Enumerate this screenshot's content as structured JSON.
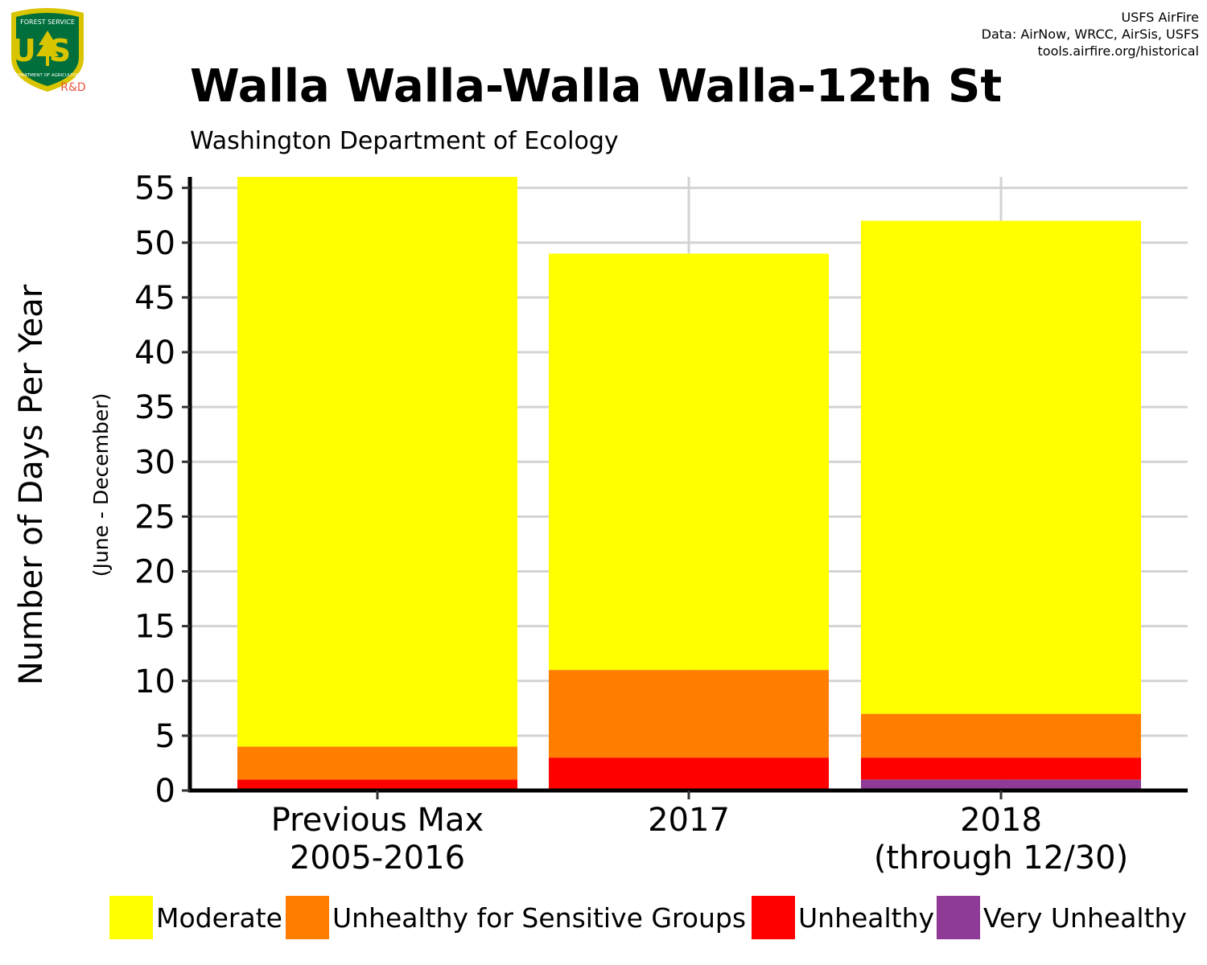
{
  "header": {
    "logo": {
      "top_text": "FOREST SERVICE",
      "letters": "US",
      "bottom_text": "DEPARTMENT OF AGRICULTURE",
      "tag": "R&D",
      "colors": {
        "shield": "#006f3c",
        "rim": "#d9c400",
        "tag": "#e8553c"
      }
    },
    "credits": [
      "USFS AirFire",
      "Data: AirNow, WRCC, AirSis, USFS",
      "tools.airfire.org/historical"
    ]
  },
  "chart_data": {
    "type": "bar",
    "stacked": true,
    "title": "Walla Walla-Walla Walla-12th St",
    "subtitle": "Washington Department of Ecology",
    "xlabel": "",
    "ylabel": "Number of Days Per Year",
    "ylabel_secondary": "(June - December)",
    "categories": [
      [
        "Previous Max",
        "2005-2016"
      ],
      [
        "2017"
      ],
      [
        "2018",
        "(through 12/30)"
      ]
    ],
    "ylim": [
      0,
      56
    ],
    "yticks": [
      0,
      5,
      10,
      15,
      20,
      25,
      30,
      35,
      40,
      45,
      50,
      55
    ],
    "grid": true,
    "legend_position": "bottom",
    "series": [
      {
        "name": "Very Unhealthy",
        "color": "#8e3a96",
        "values": [
          0,
          0,
          1
        ]
      },
      {
        "name": "Unhealthy",
        "color": "#ff0000",
        "values": [
          1,
          3,
          2
        ]
      },
      {
        "name": "Unhealthy for Sensitive Groups",
        "color": "#ff7e00",
        "values": [
          3,
          8,
          4
        ]
      },
      {
        "name": "Moderate",
        "color": "#ffff00",
        "values": [
          52,
          38,
          45
        ]
      }
    ],
    "legend_order": [
      "Moderate",
      "Unhealthy for Sensitive Groups",
      "Unhealthy",
      "Very Unhealthy"
    ]
  }
}
